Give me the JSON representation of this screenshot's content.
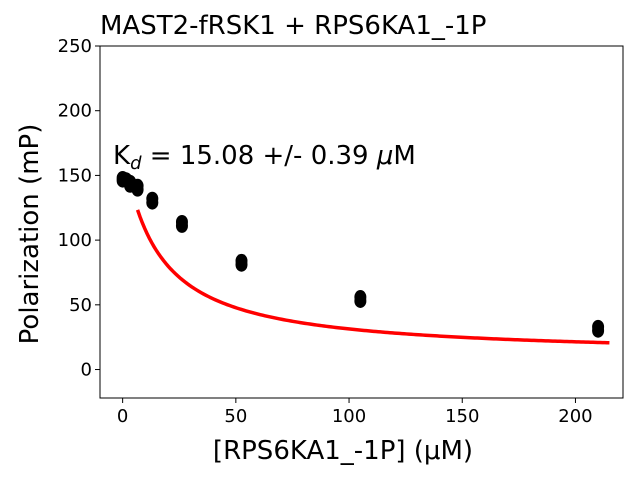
{
  "chart_data": {
    "type": "scatter",
    "title": "MAST2-fRSK1 + RPS6KA1_-1P",
    "xlabel": "[RPS6KA1_-1P] (μM)",
    "ylabel": "Polarization (mP)",
    "xlim": [
      -10,
      221
    ],
    "ylim": [
      -22,
      250
    ],
    "x_ticks": [
      "0",
      "50",
      "100",
      "150",
      "200"
    ],
    "y_ticks": [
      "0",
      "50",
      "100",
      "150",
      "200",
      "250"
    ],
    "x_tick_values": [
      0,
      50,
      100,
      150,
      200
    ],
    "y_tick_values": [
      0,
      50,
      100,
      150,
      200,
      250
    ],
    "annotation": {
      "text": "K",
      "subscript": "d",
      "rest": " = 15.08 +/- 0.39 ",
      "mu": "μ",
      "unit": "M"
    },
    "grid": false,
    "series": [
      {
        "type": "scatter",
        "color": "#000000",
        "points": [
          {
            "x": 0,
            "y": 148
          },
          {
            "x": 0,
            "y": 146
          },
          {
            "x": 1.6,
            "y": 147
          },
          {
            "x": 3.3,
            "y": 145
          },
          {
            "x": 3.3,
            "y": 142
          },
          {
            "x": 6.6,
            "y": 142
          },
          {
            "x": 6.6,
            "y": 139
          },
          {
            "x": 13.1,
            "y": 132
          },
          {
            "x": 13.1,
            "y": 129
          },
          {
            "x": 26.2,
            "y": 114
          },
          {
            "x": 26.2,
            "y": 111
          },
          {
            "x": 52.5,
            "y": 84
          },
          {
            "x": 52.5,
            "y": 81
          },
          {
            "x": 105,
            "y": 56
          },
          {
            "x": 105,
            "y": 53
          },
          {
            "x": 210,
            "y": 33
          },
          {
            "x": 210,
            "y": 30
          }
        ]
      },
      {
        "type": "line",
        "color": "#ff0000",
        "fit": {
          "kd": 15.08,
          "top": 173,
          "bottom": 10,
          "x_from": 6.6,
          "x_to": 215
        }
      }
    ]
  }
}
